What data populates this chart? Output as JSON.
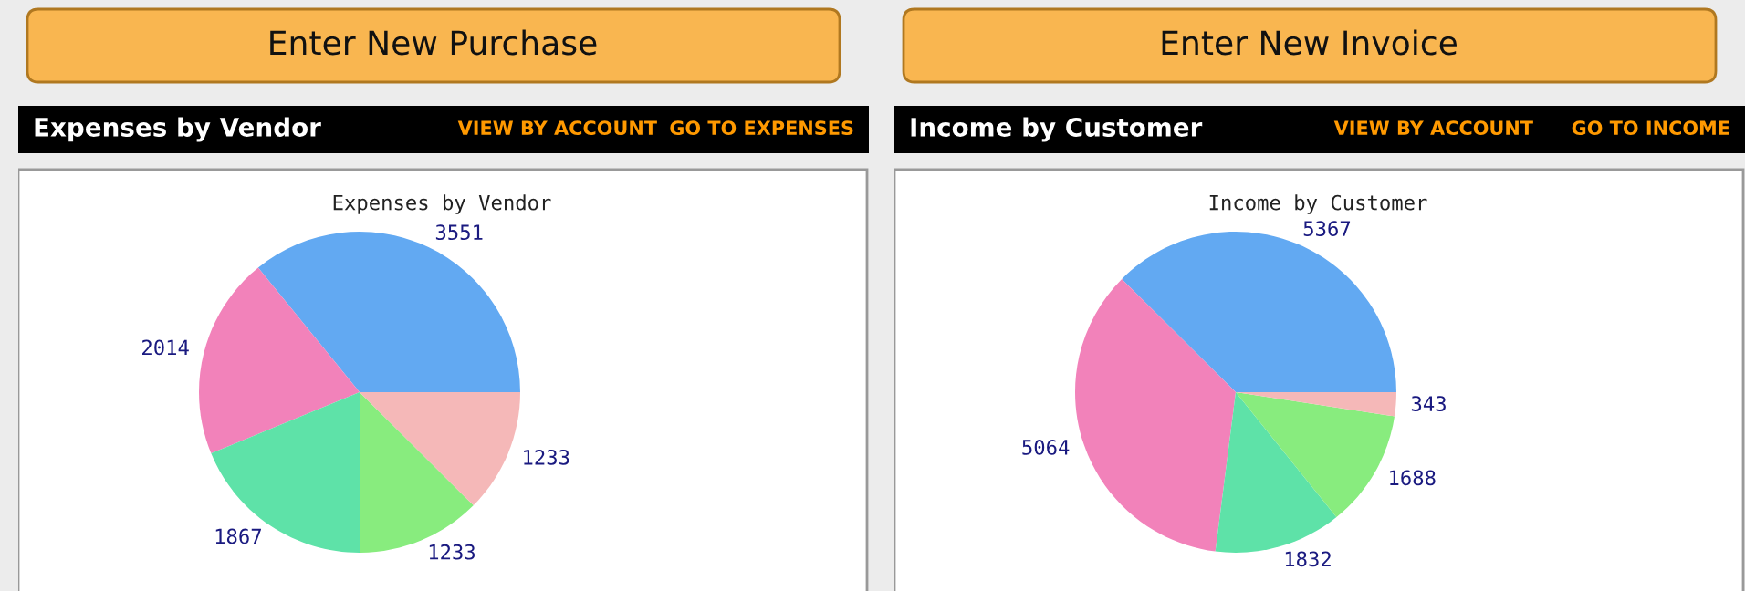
{
  "chart_data": [
    {
      "type": "pie",
      "title": "Expenses by Vendor",
      "annotations": [
        "Enter New Purchase",
        "Expenses by Vendor",
        "VIEW BY ACCOUNT",
        "GO TO EXPENSES"
      ],
      "categories": [
        null,
        null,
        null,
        null,
        null
      ],
      "values": [
        3551,
        2014,
        1867,
        1233,
        1233
      ],
      "colors": [
        "#62a9f2",
        "#f282ba",
        "#5ee2a8",
        "#88ec7e",
        "#f5b8b8"
      ],
      "data_labels": true,
      "legend": false
    },
    {
      "type": "pie",
      "title": "Income by Customer",
      "annotations": [
        "Enter New Invoice",
        "Income by Customer",
        "VIEW BY ACCOUNT",
        "GO TO INCOME"
      ],
      "categories": [
        null,
        null,
        null,
        null,
        null
      ],
      "values": [
        5367,
        5064,
        1832,
        1688,
        343
      ],
      "colors": [
        "#62a9f2",
        "#f282ba",
        "#5ee2a8",
        "#88ec7e",
        "#f5b8b8"
      ],
      "data_labels": true,
      "legend": false
    }
  ]
}
